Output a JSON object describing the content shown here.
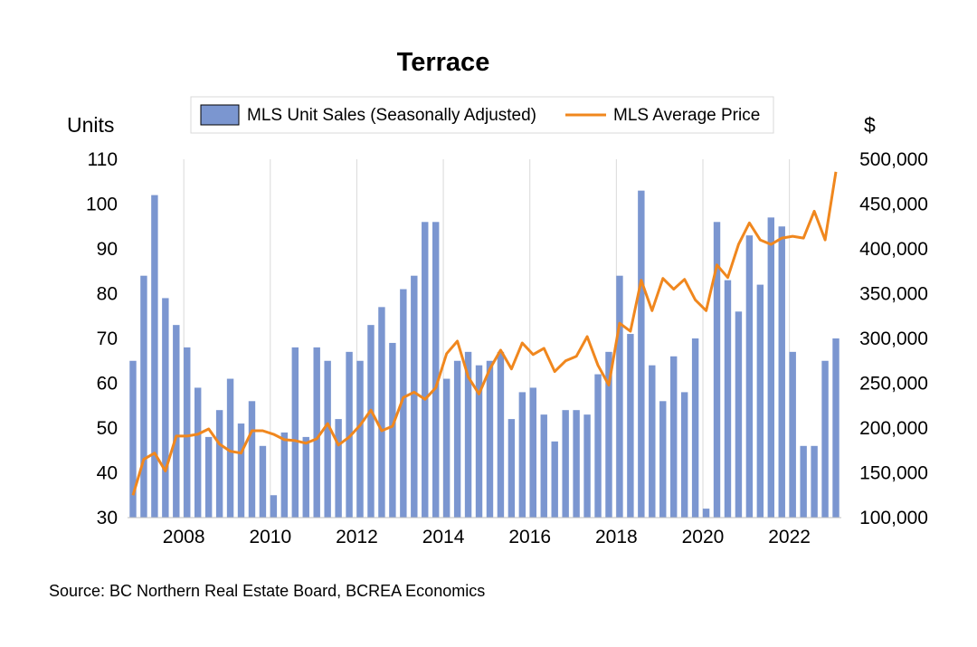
{
  "chart_data": {
    "type": "bar+line",
    "title": "Terrace",
    "source": "Source:  BC Northern Real Estate Board, BCREA Economics",
    "y_left": {
      "label": "Units",
      "min": 30,
      "max": 110,
      "ticks": [
        "30",
        "40",
        "50",
        "60",
        "70",
        "80",
        "90",
        "100",
        "110"
      ]
    },
    "y_right": {
      "label": "$",
      "min": 100000,
      "max": 500000,
      "ticks": [
        "100,000",
        "150,000",
        "200,000",
        "250,000",
        "300,000",
        "350,000",
        "400,000",
        "450,000",
        "500,000"
      ]
    },
    "x_ticks": [
      "2008",
      "2010",
      "2012",
      "2014",
      "2016",
      "2018",
      "2020",
      "2022"
    ],
    "x_tick_positions": [
      2008,
      2010,
      2012,
      2014,
      2016,
      2018,
      2020,
      2022
    ],
    "x_range": [
      2006.7,
      2023.2
    ],
    "grid": "vertical",
    "legend": {
      "placement": "top-center",
      "items": [
        "MLS Unit Sales (Seasonally Adjusted)",
        "MLS Average Price"
      ]
    },
    "series": [
      {
        "name": "MLS Unit Sales (Seasonally Adjusted)",
        "type": "bar",
        "axis": "left",
        "color": "#7b96d0",
        "values": [
          65,
          84,
          102,
          79,
          73,
          68,
          59,
          48,
          54,
          61,
          51,
          56,
          46,
          35,
          49,
          68,
          48,
          68,
          65,
          52,
          67,
          65,
          73,
          77,
          69,
          81,
          84,
          96,
          96,
          61,
          65,
          67,
          64,
          65,
          67,
          52,
          58,
          59,
          53,
          47,
          54,
          54,
          53,
          62,
          67,
          84,
          71,
          103,
          64,
          56,
          66,
          58,
          70,
          32,
          96,
          83,
          76,
          93,
          82,
          97,
          95,
          67,
          46,
          46,
          65,
          70
        ]
      },
      {
        "name": "MLS Average Price",
        "type": "line",
        "axis": "right",
        "color": "#f0871e",
        "values": [
          125000,
          165000,
          172000,
          152000,
          191000,
          191000,
          193000,
          199000,
          182000,
          174000,
          172000,
          197000,
          197000,
          193000,
          187000,
          186000,
          183000,
          188000,
          205000,
          181000,
          190000,
          203000,
          220000,
          197000,
          202000,
          234000,
          240000,
          232000,
          245000,
          283000,
          297000,
          257000,
          238000,
          266000,
          287000,
          266000,
          295000,
          282000,
          289000,
          263000,
          275000,
          280000,
          302000,
          270000,
          248000,
          317000,
          308000,
          365000,
          331000,
          367000,
          355000,
          366000,
          343000,
          331000,
          382000,
          368000,
          405000,
          429000,
          410000,
          405000,
          412000,
          414000,
          412000,
          442000,
          410000,
          486000
        ]
      }
    ]
  }
}
